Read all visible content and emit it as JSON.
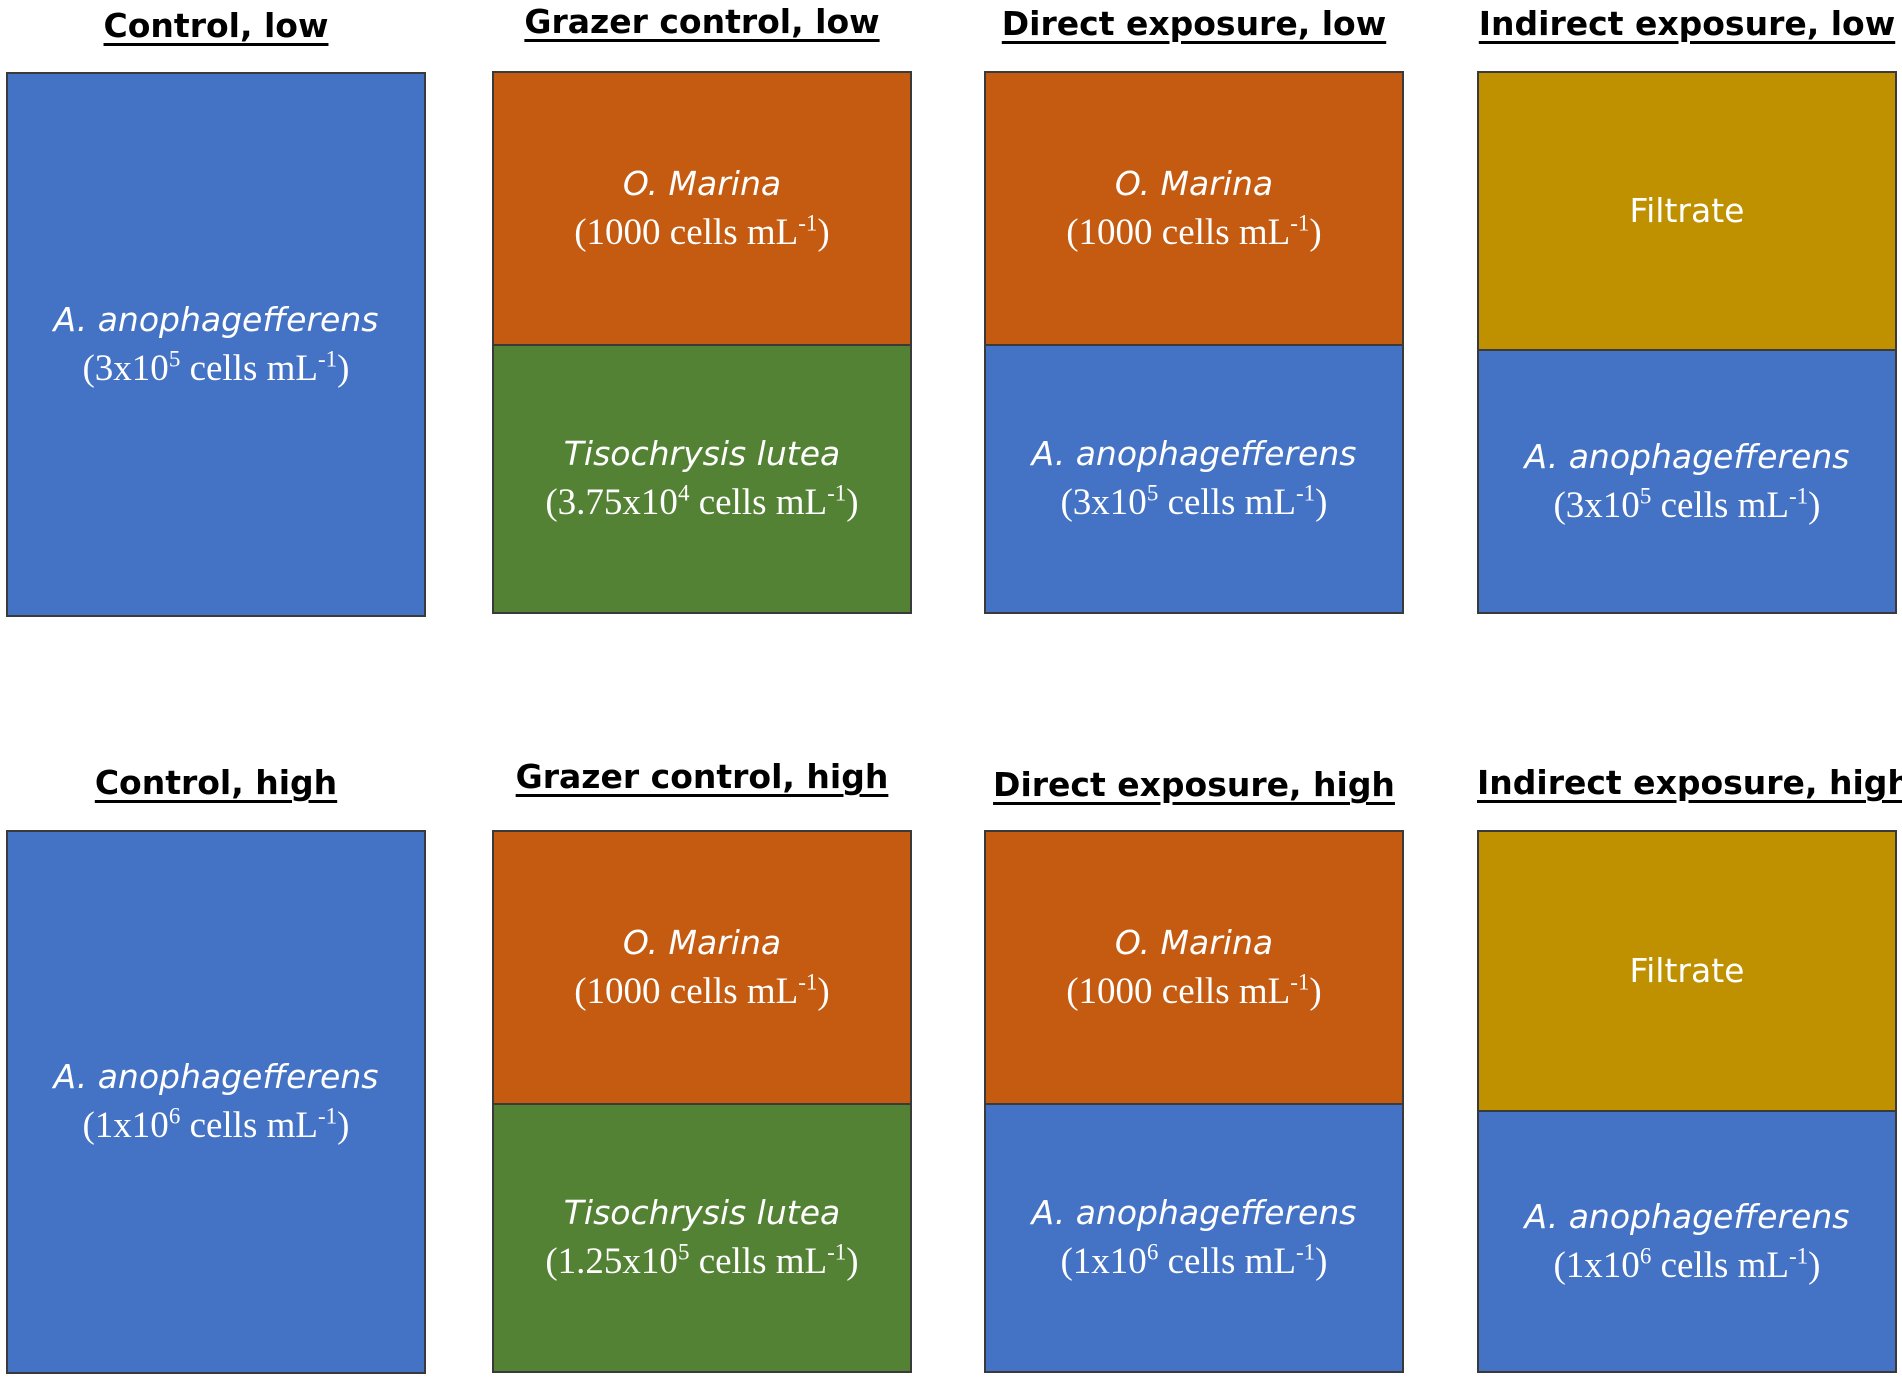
{
  "panels": [
    {
      "title": "Control, low",
      "segments": [
        {
          "color": "blue",
          "name": "A. anophagefferens",
          "italic": true,
          "conc": {
            "pre": "(3x10",
            "exp": "5",
            "mid": " cells mL",
            "unit_exp": "-1",
            "post": ")"
          }
        }
      ]
    },
    {
      "title": "Grazer control, low",
      "segments": [
        {
          "color": "orange",
          "name": "O. Marina",
          "italic": true,
          "conc": {
            "pre": "(1000 cells mL",
            "exp": "-1",
            "post": ")"
          }
        },
        {
          "color": "green",
          "name": "Tisochrysis lutea",
          "italic": true,
          "conc": {
            "pre": "(3.75x10",
            "exp": "4",
            "mid": " cells mL",
            "unit_exp": "-1",
            "post": ")"
          }
        }
      ]
    },
    {
      "title": "Direct exposure, low",
      "segments": [
        {
          "color": "orange",
          "name": "O. Marina",
          "italic": true,
          "conc": {
            "pre": "(1000 cells mL",
            "exp": "-1",
            "post": ")"
          }
        },
        {
          "color": "blue",
          "name": "A. anophagefferens",
          "italic": true,
          "conc": {
            "pre": "(3x10",
            "exp": "5",
            "mid": " cells mL",
            "unit_exp": "-1",
            "post": ")"
          }
        }
      ]
    },
    {
      "title": "Indirect exposure, low",
      "segments": [
        {
          "color": "gold",
          "name": "Filtrate",
          "italic": false
        },
        {
          "color": "blue",
          "name": "A. anophagefferens",
          "italic": true,
          "conc": {
            "pre": "(3x10",
            "exp": "5",
            "mid": " cells mL",
            "unit_exp": "-1",
            "post": ")"
          }
        }
      ]
    },
    {
      "title": "Control, high",
      "segments": [
        {
          "color": "blue",
          "name": "A. anophagefferens",
          "italic": true,
          "conc": {
            "pre": "(1x10",
            "exp": "6",
            "mid": " cells mL",
            "unit_exp": "-1",
            "post": ")"
          }
        }
      ]
    },
    {
      "title": "Grazer control, high",
      "segments": [
        {
          "color": "orange",
          "name": "O. Marina",
          "italic": true,
          "conc": {
            "pre": "(1000 cells mL",
            "exp": "-1",
            "post": ")"
          }
        },
        {
          "color": "green",
          "name": "Tisochrysis lutea",
          "italic": true,
          "conc": {
            "pre": "(1.25x10",
            "exp": "5",
            "mid": " cells mL",
            "unit_exp": "-1",
            "post": ")"
          }
        }
      ]
    },
    {
      "title": "Direct exposure, high",
      "segments": [
        {
          "color": "orange",
          "name": "O. Marina",
          "italic": true,
          "conc": {
            "pre": "(1000 cells mL",
            "exp": "-1",
            "post": ")"
          }
        },
        {
          "color": "blue",
          "name": "A. anophagefferens",
          "italic": true,
          "conc": {
            "pre": "(1x10",
            "exp": "6",
            "mid": " cells mL",
            "unit_exp": "-1",
            "post": ")"
          }
        }
      ]
    },
    {
      "title": "Indirect exposure, high",
      "segments": [
        {
          "color": "gold",
          "name": "Filtrate",
          "italic": false
        },
        {
          "color": "blue",
          "name": "A. anophagefferens",
          "italic": true,
          "conc": {
            "pre": "(1x10",
            "exp": "6",
            "mid": " cells mL",
            "unit_exp": "-1",
            "post": ")"
          }
        }
      ]
    }
  ]
}
